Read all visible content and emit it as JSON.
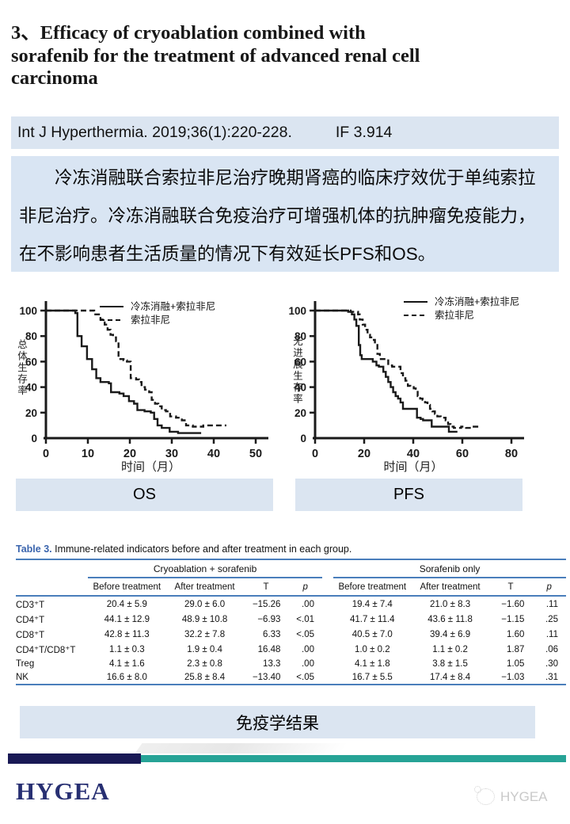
{
  "slide": {
    "title_lines": [
      "3、Efficacy of cryoablation combined with",
      "sorafenib for the treatment of advanced renal cell",
      "carcinoma"
    ],
    "citation": "Int J Hyperthermia. 2019;36(1):220-228.",
    "impact_factor": "IF 3.914",
    "summary": "冷冻消融联合索拉非尼治疗晚期肾癌的临床疗效优于单纯索拉非尼治疗。冷冻消融联合免疫治疗可增强机体的抗肿瘤免疫能力， 在不影响患者生活质量的情况下有效延长PFS和OS。"
  },
  "captions": {
    "os": "OS",
    "pfs": "PFS",
    "result": "免疫学结果"
  },
  "chart_data": [
    {
      "type": "line",
      "name": "OS",
      "title": "",
      "xlabel": "时间（月）",
      "ylabel": "总体生存率",
      "xlim": [
        0,
        50
      ],
      "ylim": [
        0,
        100
      ],
      "xticks": [
        0,
        10,
        20,
        30,
        40,
        50
      ],
      "yticks": [
        0,
        20,
        40,
        60,
        80,
        100
      ],
      "legend_position": "top-right",
      "series": [
        {
          "name": "冷冻消融+索拉非尼",
          "style": "solid",
          "points": [
            [
              0,
              100
            ],
            [
              7,
              100
            ],
            [
              7,
              98
            ],
            [
              7.5,
              98
            ],
            [
              7.5,
              80
            ],
            [
              8.5,
              80
            ],
            [
              8.5,
              72
            ],
            [
              9.8,
              72
            ],
            [
              9.8,
              62
            ],
            [
              11,
              62
            ],
            [
              11,
              54
            ],
            [
              12,
              54
            ],
            [
              12,
              47
            ],
            [
              13,
              47
            ],
            [
              13,
              44
            ],
            [
              15,
              44
            ],
            [
              15,
              43
            ],
            [
              15.5,
              43
            ],
            [
              15.5,
              36
            ],
            [
              17.5,
              36
            ],
            [
              17.5,
              35
            ],
            [
              18.5,
              35
            ],
            [
              18.5,
              33
            ],
            [
              19.8,
              33
            ],
            [
              19.8,
              29
            ],
            [
              21,
              29
            ],
            [
              21,
              27
            ],
            [
              21.8,
              27
            ],
            [
              21.8,
              22
            ],
            [
              23.5,
              22
            ],
            [
              23.5,
              21
            ],
            [
              25,
              21
            ],
            [
              25,
              20
            ],
            [
              25.8,
              20
            ],
            [
              25.8,
              15
            ],
            [
              26.6,
              15
            ],
            [
              26.6,
              10
            ],
            [
              27.6,
              10
            ],
            [
              27.6,
              8
            ],
            [
              29.5,
              8
            ],
            [
              29.5,
              5
            ],
            [
              31.5,
              5
            ],
            [
              31.5,
              4
            ],
            [
              37,
              4
            ]
          ]
        },
        {
          "name": "索拉非尼",
          "style": "dashed",
          "points": [
            [
              0,
              100
            ],
            [
              11.5,
              100
            ],
            [
              11.5,
              97
            ],
            [
              13,
              97
            ],
            [
              13,
              93
            ],
            [
              14,
              93
            ],
            [
              14,
              89
            ],
            [
              14.7,
              89
            ],
            [
              14.7,
              85
            ],
            [
              15.4,
              85
            ],
            [
              15.4,
              81
            ],
            [
              16,
              81
            ],
            [
              16,
              79
            ],
            [
              16.7,
              79
            ],
            [
              16.7,
              76
            ],
            [
              17.3,
              76
            ],
            [
              17.3,
              62
            ],
            [
              18.5,
              62
            ],
            [
              18.5,
              61
            ],
            [
              19.3,
              61
            ],
            [
              19.3,
              60
            ],
            [
              20.2,
              60
            ],
            [
              20.2,
              47
            ],
            [
              21.5,
              47
            ],
            [
              21.5,
              46
            ],
            [
              22.2,
              46
            ],
            [
              22.2,
              44
            ],
            [
              22.8,
              44
            ],
            [
              22.8,
              40
            ],
            [
              23.6,
              40
            ],
            [
              23.6,
              38
            ],
            [
              24.6,
              38
            ],
            [
              24.6,
              36
            ],
            [
              25.2,
              36
            ],
            [
              25.2,
              30
            ],
            [
              26,
              30
            ],
            [
              26,
              27
            ],
            [
              26.8,
              27
            ],
            [
              26.8,
              25
            ],
            [
              27.6,
              25
            ],
            [
              27.6,
              22
            ],
            [
              28.6,
              22
            ],
            [
              28.6,
              21
            ],
            [
              29.6,
              21
            ],
            [
              29.6,
              17
            ],
            [
              31,
              17
            ],
            [
              31,
              16
            ],
            [
              32.4,
              16
            ],
            [
              32.4,
              14
            ],
            [
              33.4,
              14
            ],
            [
              33.4,
              10
            ],
            [
              35,
              10
            ],
            [
              35,
              9
            ],
            [
              37.5,
              9
            ],
            [
              37.5,
              10
            ],
            [
              43,
              10
            ]
          ]
        }
      ]
    },
    {
      "type": "line",
      "name": "PFS",
      "title": "",
      "xlabel": "时间（月）",
      "ylabel": "无进展生存率",
      "xlim": [
        0,
        80
      ],
      "ylim": [
        0,
        100
      ],
      "xticks": [
        0,
        20,
        40,
        60,
        80
      ],
      "yticks": [
        0,
        20,
        40,
        60,
        80,
        100
      ],
      "legend_position": "top-right",
      "series": [
        {
          "name": "冷冻消融+索拉非尼",
          "style": "solid",
          "points": [
            [
              0,
              100
            ],
            [
              13.5,
              100
            ],
            [
              13.5,
              99
            ],
            [
              15,
              99
            ],
            [
              15,
              97
            ],
            [
              16,
              97
            ],
            [
              16,
              93
            ],
            [
              16.8,
              93
            ],
            [
              16.8,
              88
            ],
            [
              17.8,
              88
            ],
            [
              17.8,
              73
            ],
            [
              18.4,
              73
            ],
            [
              18.4,
              65
            ],
            [
              19,
              65
            ],
            [
              19,
              62
            ],
            [
              23.5,
              62
            ],
            [
              23.5,
              60
            ],
            [
              25,
              60
            ],
            [
              25,
              57
            ],
            [
              26,
              57
            ],
            [
              26,
              56
            ],
            [
              27.8,
              56
            ],
            [
              27.8,
              52
            ],
            [
              28.8,
              52
            ],
            [
              28.8,
              48
            ],
            [
              29.8,
              48
            ],
            [
              29.8,
              44
            ],
            [
              30.8,
              44
            ],
            [
              30.8,
              40
            ],
            [
              31.8,
              40
            ],
            [
              31.8,
              36
            ],
            [
              32.8,
              36
            ],
            [
              32.8,
              33
            ],
            [
              33.8,
              33
            ],
            [
              33.8,
              31
            ],
            [
              34.8,
              31
            ],
            [
              34.8,
              28
            ],
            [
              35.8,
              28
            ],
            [
              35.8,
              23
            ],
            [
              41.5,
              23
            ],
            [
              41.5,
              16
            ],
            [
              43,
              16
            ],
            [
              43,
              15
            ],
            [
              44,
              15
            ],
            [
              44,
              14
            ],
            [
              47.5,
              14
            ],
            [
              47.5,
              9
            ],
            [
              54.5,
              9
            ],
            [
              54.5,
              5
            ],
            [
              58,
              5
            ]
          ]
        },
        {
          "name": "索拉非尼",
          "style": "dashed",
          "points": [
            [
              0,
              100
            ],
            [
              14.5,
              100
            ],
            [
              14.5,
              99
            ],
            [
              17.5,
              99
            ],
            [
              17.5,
              97
            ],
            [
              18.2,
              97
            ],
            [
              18.2,
              93
            ],
            [
              19.4,
              93
            ],
            [
              19.4,
              89
            ],
            [
              20.4,
              89
            ],
            [
              20.4,
              85
            ],
            [
              21.4,
              85
            ],
            [
              21.4,
              81
            ],
            [
              22.4,
              81
            ],
            [
              22.4,
              79
            ],
            [
              23.4,
              79
            ],
            [
              23.4,
              77
            ],
            [
              24.4,
              77
            ],
            [
              24.4,
              73
            ],
            [
              25.4,
              73
            ],
            [
              25.4,
              66
            ],
            [
              26.4,
              66
            ],
            [
              26.4,
              62
            ],
            [
              29.8,
              62
            ],
            [
              29.8,
              57
            ],
            [
              31.4,
              57
            ],
            [
              31.4,
              56
            ],
            [
              34.8,
              56
            ],
            [
              34.8,
              51
            ],
            [
              35.8,
              51
            ],
            [
              35.8,
              47
            ],
            [
              36.8,
              47
            ],
            [
              36.8,
              45
            ],
            [
              37.8,
              45
            ],
            [
              37.8,
              41
            ],
            [
              38.8,
              41
            ],
            [
              38.8,
              40
            ],
            [
              40.2,
              40
            ],
            [
              40.2,
              39
            ],
            [
              41,
              39
            ],
            [
              41,
              37
            ],
            [
              41.8,
              37
            ],
            [
              41.8,
              33
            ],
            [
              42.8,
              33
            ],
            [
              42.8,
              31
            ],
            [
              43.8,
              31
            ],
            [
              43.8,
              30
            ],
            [
              44.8,
              30
            ],
            [
              44.8,
              28
            ],
            [
              45.8,
              28
            ],
            [
              45.8,
              26
            ],
            [
              46.8,
              26
            ],
            [
              46.8,
              23
            ],
            [
              47.8,
              23
            ],
            [
              47.8,
              21
            ],
            [
              48.8,
              21
            ],
            [
              48.8,
              19
            ],
            [
              49.8,
              19
            ],
            [
              49.8,
              17
            ],
            [
              51.2,
              17
            ],
            [
              51.2,
              16
            ],
            [
              53.2,
              16
            ],
            [
              53.2,
              14
            ],
            [
              54.2,
              14
            ],
            [
              54.2,
              11
            ],
            [
              55.2,
              11
            ],
            [
              55.2,
              9
            ],
            [
              56.5,
              9
            ],
            [
              56.5,
              8
            ],
            [
              59.5,
              8
            ],
            [
              59.5,
              9
            ],
            [
              61.5,
              9
            ],
            [
              61.5,
              8
            ],
            [
              63.5,
              8
            ],
            [
              63.5,
              9
            ],
            [
              67,
              9
            ]
          ]
        }
      ]
    }
  ],
  "table": {
    "title_label": "Table 3.",
    "title_text": "Immune-related indicators before and after treatment in each group.",
    "groups": [
      "Cryoablation + sorafenib",
      "Sorafenib only"
    ],
    "subheaders": [
      "Before treatment",
      "After treatment",
      "T",
      "p"
    ],
    "rows": [
      {
        "label": "CD3⁺T",
        "group1": [
          "20.4 ± 5.9",
          "29.0 ± 6.0",
          "−15.26",
          ".00"
        ],
        "group2": [
          "19.4 ± 7.4",
          "21.0 ± 8.3",
          "−1.60",
          ".11"
        ]
      },
      {
        "label": "CD4⁺T",
        "group1": [
          "44.1 ± 12.9",
          "48.9 ± 10.8",
          "−6.93",
          "<.01"
        ],
        "group2": [
          "41.7 ± 11.4",
          "43.6 ± 11.8",
          "−1.15",
          ".25"
        ]
      },
      {
        "label": "CD8⁺T",
        "group1": [
          "42.8 ± 11.3",
          "32.2 ± 7.8",
          "6.33",
          "<.05"
        ],
        "group2": [
          "40.5 ± 7.0",
          "39.4 ± 6.9",
          "1.60",
          ".11"
        ]
      },
      {
        "label": "CD4⁺T/CD8⁺T",
        "group1": [
          "1.1 ± 0.3",
          "1.9 ± 0.4",
          "16.48",
          ".00"
        ],
        "group2": [
          "1.0 ± 0.2",
          "1.1 ± 0.2",
          "1.87",
          ".06"
        ]
      },
      {
        "label": "Treg",
        "group1": [
          "4.1 ± 1.6",
          "2.3 ± 0.8",
          "13.3",
          ".00"
        ],
        "group2": [
          "4.1 ± 1.8",
          "3.8 ± 1.5",
          "1.05",
          ".30"
        ]
      },
      {
        "label": "NK",
        "group1": [
          "16.6 ± 8.0",
          "25.8 ± 8.4",
          "−13.40",
          "<.05"
        ],
        "group2": [
          "16.7 ± 5.5",
          "17.4 ± 8.4",
          "−1.03",
          ".31"
        ]
      }
    ]
  },
  "footer": {
    "logo": "HYGEA",
    "watermark": "HYGEA"
  },
  "colors": {
    "light_blue_box": "#dbe5f1",
    "summary_box": "#d9e5f3",
    "table_rule_blue": "#4a7ebb",
    "table_title_blue": "#3a64ad",
    "navy_bar": "#191955",
    "teal_bar": "#26a396",
    "logo_navy": "#272f72",
    "watermark_gray": "#c9c9c9",
    "curve_black": "#1a1a1a"
  }
}
